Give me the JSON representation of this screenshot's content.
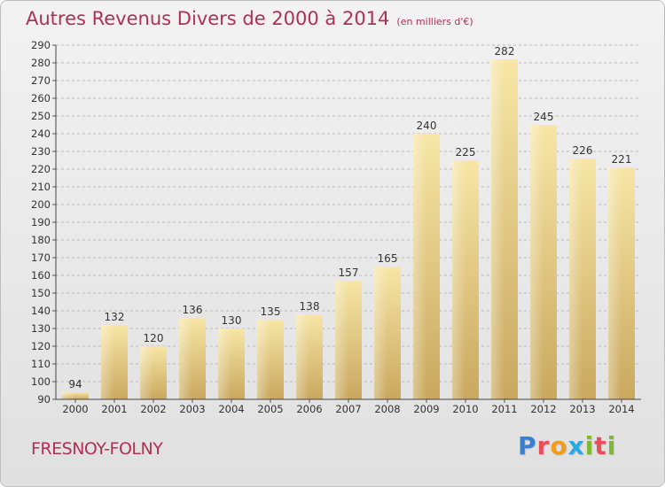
{
  "header": {
    "title": "Autres Revenus Divers de 2000 à 2014",
    "subtitle": "(en milliers d'€)"
  },
  "footer": {
    "commune": "FRESNOY-FOLNY",
    "logo_letters": [
      "P",
      "r",
      "o",
      "x",
      "i",
      "t",
      "i"
    ]
  },
  "colors": {
    "title": "#b03055",
    "bar_light": "#f7e6a6",
    "bar_dark": "#c9a85e",
    "grid": "#b8b8b8",
    "logo": [
      "#3a7fd1",
      "#e94f5b",
      "#f39c1a",
      "#2aa8e0",
      "#7dbb2d",
      "#e94f5b",
      "#7dbb2d"
    ]
  },
  "chart_data": {
    "type": "bar",
    "title": "Autres Revenus Divers de 2000 à 2014",
    "subtitle": "(en milliers d'€)",
    "xlabel": "",
    "ylabel": "",
    "categories": [
      "2000",
      "2001",
      "2002",
      "2003",
      "2004",
      "2005",
      "2006",
      "2007",
      "2008",
      "2009",
      "2010",
      "2011",
      "2012",
      "2013",
      "2014"
    ],
    "values": [
      94,
      132,
      120,
      136,
      130,
      135,
      138,
      157,
      165,
      240,
      225,
      282,
      245,
      226,
      221
    ],
    "data_labels": [
      "94",
      "132",
      "120",
      "136",
      "130",
      "135",
      "138",
      "157",
      "165",
      "240",
      "225",
      "282",
      "245",
      "226",
      "221"
    ],
    "ylim": [
      90,
      290
    ],
    "yticks": [
      90,
      100,
      110,
      120,
      130,
      140,
      150,
      160,
      170,
      180,
      190,
      200,
      210,
      220,
      230,
      240,
      250,
      260,
      270,
      280,
      290
    ],
    "grid": "horizontal dashed",
    "legend": "none"
  }
}
